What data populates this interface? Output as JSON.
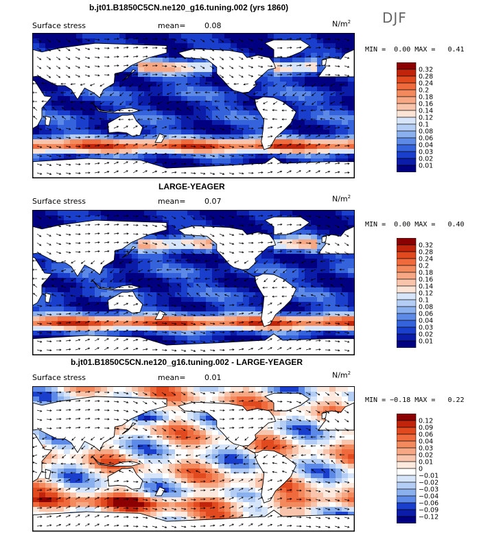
{
  "header": {
    "season": "DJF"
  },
  "panels": [
    {
      "title": "b.jt01.B1850C5CN.ne120_g16.tuning.002 (yrs 1860)",
      "variable": "Surface stress",
      "mean_label": "mean=",
      "mean_value": "0.08",
      "unit": "N/m",
      "unit_sup": "2",
      "min_label": "MIN =",
      "min_value": "0.00",
      "max_label": "MAX =",
      "max_value": "0.41"
    },
    {
      "title": "LARGE-YEAGER",
      "variable": "Surface stress",
      "mean_label": "mean=",
      "mean_value": "0.07",
      "unit": "N/m",
      "unit_sup": "2",
      "min_label": "MIN =",
      "min_value": "0.00",
      "max_label": "MAX =",
      "max_value": "0.40"
    },
    {
      "title": "b.jt01.B1850C5CN.ne120_g16.tuning.002 - LARGE-YEAGER",
      "variable": "Surface stress",
      "mean_label": "mean=",
      "mean_value": "0.01",
      "unit": "N/m",
      "unit_sup": "2",
      "min_label": "MIN =",
      "min_value": "−0.18",
      "max_label": "MAX =",
      "max_value": "0.22"
    }
  ],
  "chart_data": [
    {
      "type": "heatmap",
      "title": "b.jt01.B1850C5CN.ne120_g16.tuning.002 (yrs 1860)",
      "colorbar_levels": [
        "0.32",
        "0.28",
        "0.24",
        "0.2",
        "0.18",
        "0.16",
        "0.14",
        "0.12",
        "0.1",
        "0.08",
        "0.06",
        "0.04",
        "0.03",
        "0.02",
        "0.01"
      ],
      "colorbar_colors": [
        "#8b0000",
        "#c0250c",
        "#e04a1e",
        "#ef6a3c",
        "#f38a5e",
        "#f6a784",
        "#f8c4ab",
        "#fbe3d6",
        "#d7e5fa",
        "#b4cdf5",
        "#8bb0ee",
        "#5d8ae6",
        "#3563dc",
        "#1a3fcc",
        "#0b1da8",
        "#000080"
      ],
      "mean": 0.08,
      "min": 0.0,
      "max": 0.41
    },
    {
      "type": "heatmap",
      "title": "LARGE-YEAGER",
      "colorbar_levels": [
        "0.32",
        "0.28",
        "0.24",
        "0.2",
        "0.18",
        "0.16",
        "0.14",
        "0.12",
        "0.1",
        "0.08",
        "0.06",
        "0.04",
        "0.03",
        "0.02",
        "0.01"
      ],
      "colorbar_colors": [
        "#8b0000",
        "#c0250c",
        "#e04a1e",
        "#ef6a3c",
        "#f38a5e",
        "#f6a784",
        "#f8c4ab",
        "#fbe3d6",
        "#d7e5fa",
        "#b4cdf5",
        "#8bb0ee",
        "#5d8ae6",
        "#3563dc",
        "#1a3fcc",
        "#0b1da8",
        "#000080"
      ],
      "mean": 0.07,
      "min": 0.0,
      "max": 0.4
    },
    {
      "type": "heatmap",
      "title": "b.jt01.B1850C5CN.ne120_g16.tuning.002 - LARGE-YEAGER",
      "colorbar_levels": [
        "0.12",
        "0.09",
        "0.06",
        "0.04",
        "0.03",
        "0.02",
        "0.01",
        "0",
        "−0.01",
        "−0.02",
        "−0.03",
        "−0.04",
        "−0.06",
        "−0.09",
        "−0.12"
      ],
      "colorbar_colors": [
        "#8b0000",
        "#c0250c",
        "#e04a1e",
        "#ef6a3c",
        "#f38a5e",
        "#f6a784",
        "#f8c4ab",
        "#fde9dd",
        "#ffffff",
        "#d7e5fa",
        "#b4cdf5",
        "#8bb0ee",
        "#5d8ae6",
        "#1a3fcc",
        "#0b1da8",
        "#000080"
      ],
      "mean": 0.01,
      "min": -0.18,
      "max": 0.22
    }
  ]
}
